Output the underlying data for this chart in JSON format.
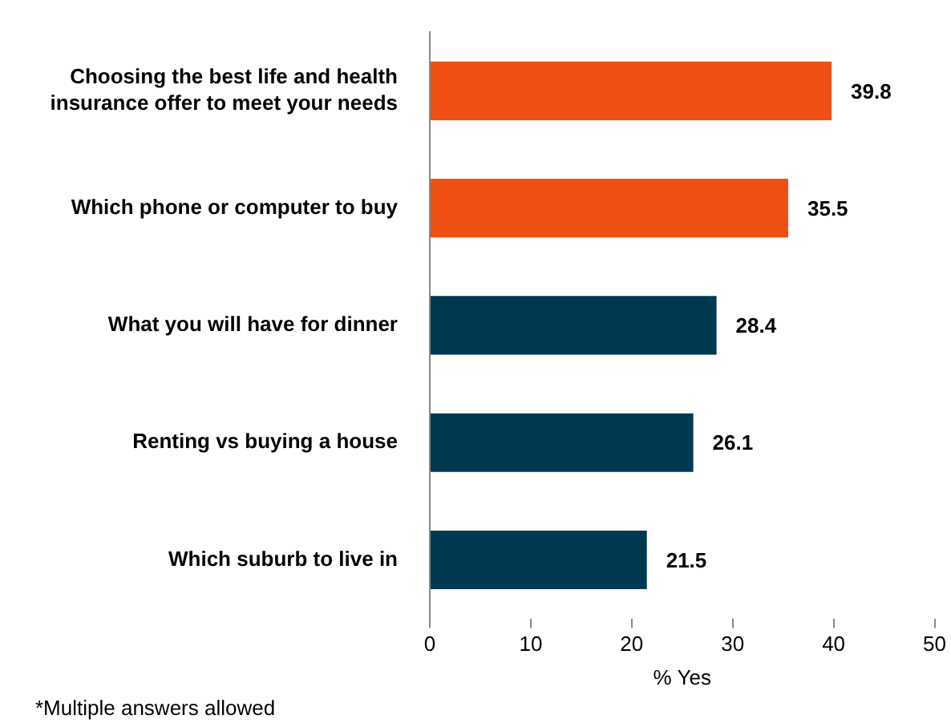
{
  "chart_data": {
    "type": "bar",
    "orientation": "horizontal",
    "categories": [
      "Choosing the best life and health insurance offer to meet your needs",
      "Which phone or computer to buy",
      "What you will have for dinner",
      "Renting vs buying a house",
      "Which suburb to live in"
    ],
    "values": [
      39.8,
      35.5,
      28.4,
      26.1,
      21.5
    ],
    "colors": [
      "#f05014",
      "#f05014",
      "#003852",
      "#003852",
      "#003852"
    ],
    "xlim": [
      0,
      50
    ],
    "xticks": [
      0,
      10,
      20,
      30,
      40,
      50
    ],
    "xlabel": "% Yes",
    "grid": false,
    "legend": false,
    "data_labels": true,
    "annotations": [
      "*Multiple answers allowed"
    ]
  }
}
